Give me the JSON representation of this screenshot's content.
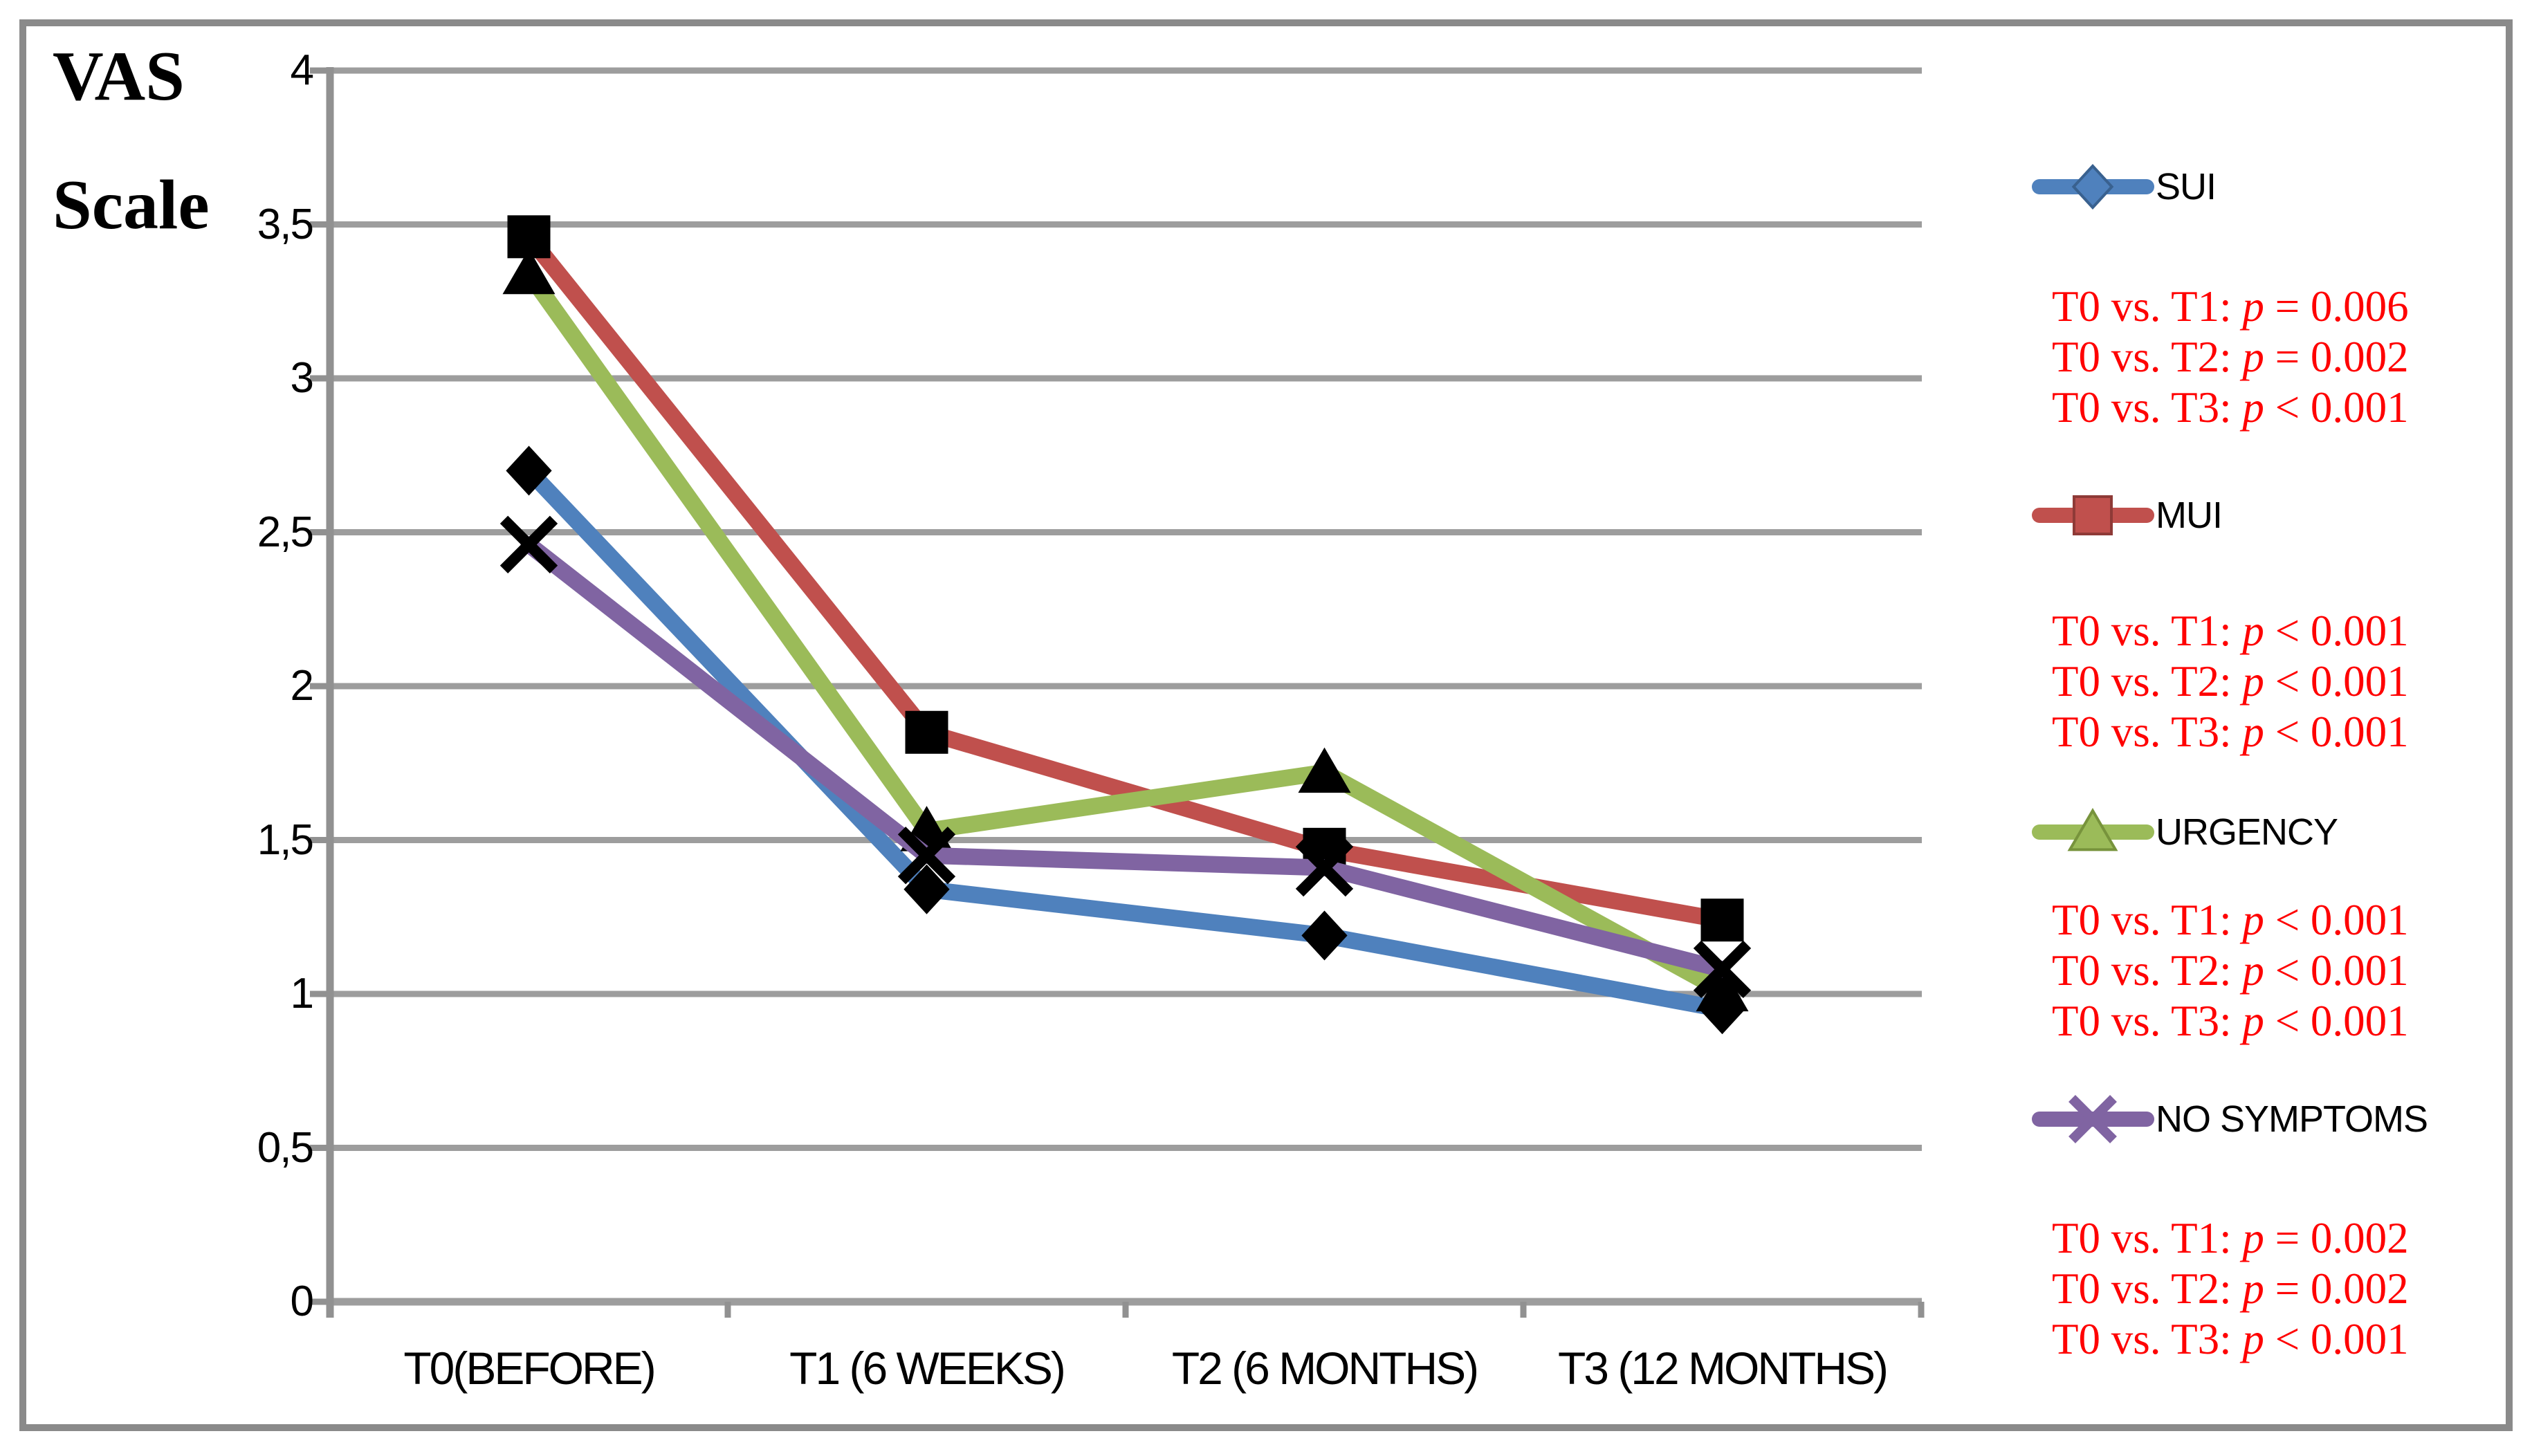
{
  "title": {
    "line1": "VAS",
    "line2": "Scale"
  },
  "chart_data": {
    "type": "line",
    "title": "VAS Scale over follow-up time points",
    "ylabel": "VAS Scale",
    "xlabel": "",
    "ylim": [
      0,
      4
    ],
    "y_tick_step": 0.5,
    "y_tick_labels_top_down": [
      "4",
      "3,5",
      "3",
      "2,5",
      "2",
      "1,5",
      "1",
      "0,5",
      "0"
    ],
    "grid": true,
    "legend_position": "right",
    "plot_marker_color": "#000000",
    "gridline_color": "#9d9d9d",
    "axis_color": "#919191",
    "categories": [
      "T0(BEFORE)",
      "T1 (6 WEEKS)",
      "T2 (6 MONTHS)",
      "T3 (12 MONTHS)"
    ],
    "series": [
      {
        "name": "SUI",
        "color": "#4F81BD",
        "edge": "#39618F",
        "marker": "diamond",
        "values": [
          2.7,
          1.34,
          1.19,
          0.95
        ]
      },
      {
        "name": "MUI",
        "color": "#C0504D",
        "edge": "#8E3A37",
        "marker": "square",
        "values": [
          3.46,
          1.85,
          1.47,
          1.24
        ]
      },
      {
        "name": "URGENCY",
        "color": "#9BBB59",
        "edge": "#77933C",
        "marker": "triangle",
        "values": [
          3.34,
          1.53,
          1.72,
          1.01
        ]
      },
      {
        "name": "NO SYMPTOMS",
        "color": "#8064A2",
        "edge": "#60497B",
        "marker": "x",
        "values": [
          2.46,
          1.45,
          1.41,
          1.08
        ]
      }
    ]
  },
  "legend": {
    "p_symbol": "p",
    "p_text_color": "#FF0000",
    "items": [
      {
        "label": "SUI",
        "comparisons": [
          {
            "pair": "T0 vs. T1",
            "rel": "=",
            "value": "0.006"
          },
          {
            "pair": "T0 vs. T2",
            "rel": "=",
            "value": "0.002"
          },
          {
            "pair": "T0 vs. T3",
            "rel": "<",
            "value": "0.001"
          }
        ]
      },
      {
        "label": "MUI",
        "comparisons": [
          {
            "pair": "T0 vs. T1",
            "rel": "<",
            "value": "0.001"
          },
          {
            "pair": "T0 vs. T2",
            "rel": "<",
            "value": "0.001"
          },
          {
            "pair": "T0 vs. T3",
            "rel": "<",
            "value": "0.001"
          }
        ]
      },
      {
        "label": "URGENCY",
        "comparisons": [
          {
            "pair": "T0 vs. T1",
            "rel": "<",
            "value": "0.001"
          },
          {
            "pair": "T0 vs. T2",
            "rel": "<",
            "value": "0.001"
          },
          {
            "pair": "T0 vs. T3",
            "rel": "<",
            "value": "0.001"
          }
        ]
      },
      {
        "label": "NO SYMPTOMS",
        "comparisons": [
          {
            "pair": "T0 vs. T1",
            "rel": "=",
            "value": "0.002"
          },
          {
            "pair": "T0 vs. T2",
            "rel": "=",
            "value": "0.002"
          },
          {
            "pair": "T0 vs. T3",
            "rel": "<",
            "value": "0.001"
          }
        ]
      }
    ]
  }
}
